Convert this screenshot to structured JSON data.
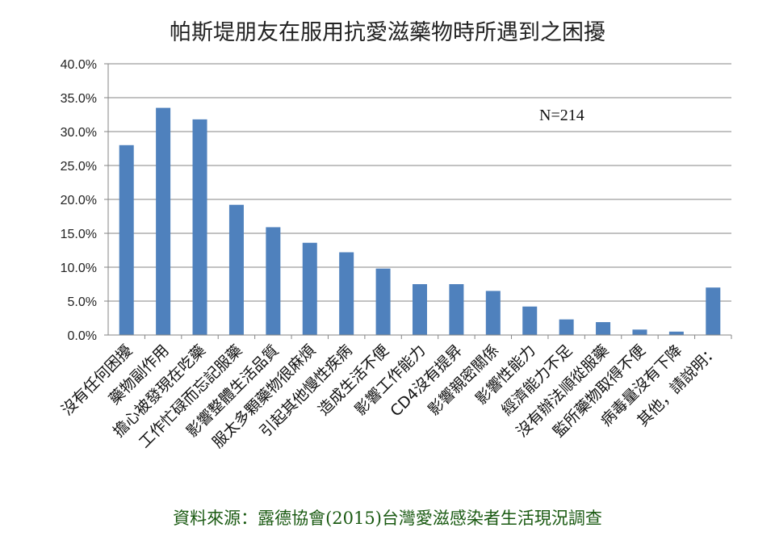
{
  "title": "帕斯堤朋友在服用抗愛滋藥物時所遇到之困擾",
  "source": "資料來源：露德協會(2015)台灣愛滋感染者生活現況調查",
  "chart_data": {
    "type": "bar",
    "title": "帕斯堤朋友在服用抗愛滋藥物時所遇到之困擾",
    "xlabel": "",
    "ylabel": "",
    "ylim": [
      0,
      0.4
    ],
    "yticks": [
      0,
      0.05,
      0.1,
      0.15,
      0.2,
      0.25,
      0.3,
      0.35,
      0.4
    ],
    "ytick_labels": [
      "0.0%",
      "5.0%",
      "10.0%",
      "15.0%",
      "20.0%",
      "25.0%",
      "30.0%",
      "35.0%",
      "40.0%"
    ],
    "grid": true,
    "legend": "none",
    "bar_color": "#4f81bd",
    "categories": [
      "沒有任何困擾",
      "藥物副作用",
      "擔心被發現在吃藥",
      "工作忙碌而忘記服藥",
      "影響整體生活品質",
      "服太多顆藥物很麻煩",
      "引起其他慢性疾病",
      "造成生活不便",
      "影響工作能力",
      "CD4沒有提昇",
      "影響親密關係",
      "影響性能力",
      "經濟能力不足",
      "沒有辦法順從服藥",
      "監所藥物取得不便",
      "病毒量沒有下降",
      "其他，請說明："
    ],
    "values": [
      0.28,
      0.335,
      0.318,
      0.192,
      0.159,
      0.136,
      0.122,
      0.098,
      0.075,
      0.075,
      0.065,
      0.042,
      0.023,
      0.019,
      0.008,
      0.005,
      0.07
    ],
    "annotations": [
      "N=214"
    ]
  }
}
